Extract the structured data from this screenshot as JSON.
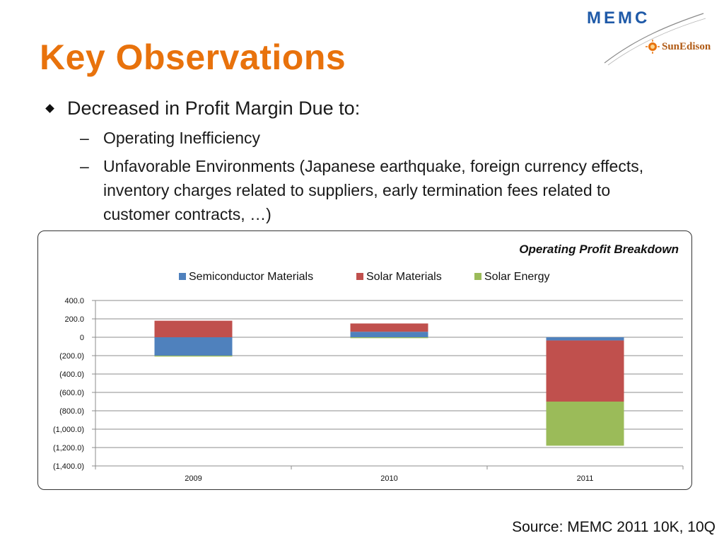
{
  "slide": {
    "title": "Key Observations",
    "logo_primary": "MEMC",
    "logo_secondary": "SunEdison",
    "bullet_main": "Decreased in Profit Margin Due to:",
    "sub_bullets": [
      "Operating Inefficiency",
      "Unfavorable Environments (Japanese earthquake, foreign currency effects, inventory charges related to suppliers, early termination fees related to customer contracts, …)"
    ],
    "source": "Source: MEMC 2011 10K, 10Q",
    "colors": {
      "title": "#e8720c",
      "logo": "#1f5aa8"
    }
  },
  "chart_data": {
    "type": "bar",
    "stacked": true,
    "title": "Operating Profit Breakdown",
    "categories": [
      "2009",
      "2010",
      "2011"
    ],
    "series": [
      {
        "name": "Semiconductor Materials",
        "color": "#4f81bd",
        "values": [
          -200,
          60,
          -35
        ]
      },
      {
        "name": "Solar Materials",
        "color": "#c0504d",
        "values": [
          180,
          90,
          -665
        ]
      },
      {
        "name": "Solar Energy",
        "color": "#9bbb59",
        "values": [
          -10,
          -10,
          -480
        ]
      }
    ],
    "yticks": [
      "400.0",
      "200.0",
      "0",
      "(200.0)",
      "(400.0)",
      "(600.0)",
      "(800.0)",
      "(1,000.0)",
      "(1,200.0)",
      "(1,400.0)"
    ],
    "ylim": [
      -1400,
      400
    ],
    "legend_position": "top",
    "grid": true
  }
}
